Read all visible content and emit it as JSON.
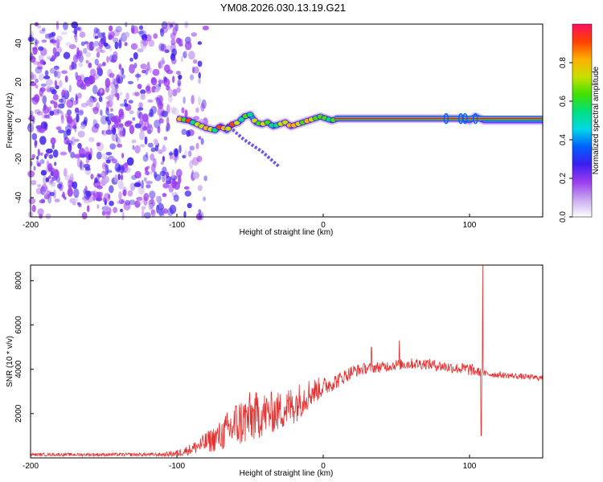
{
  "figure_title": "YM08.2026.030.13.19.G21",
  "chart_data": [
    {
      "type": "heatmap",
      "name": "spectrogram",
      "title": "YM08.2026.030.13.19.G21",
      "xlabel": "Height of straight line (km)",
      "ylabel": "Frequency (Hz)",
      "xlim": [
        -200,
        150
      ],
      "ylim": [
        -50,
        50
      ],
      "x_ticks": [
        -200,
        -100,
        0,
        100
      ],
      "y_ticks": [
        -40,
        -20,
        0,
        20,
        40
      ],
      "colorbar": {
        "label": "Normalized spectral amplitude",
        "range": [
          0,
          1
        ],
        "ticks": [
          "0.0",
          "0.2",
          "0.4",
          "0.6",
          "0.8"
        ],
        "colors": [
          "#ffffff",
          "#c8a8f0",
          "#9b3cf0",
          "#3c1ef0",
          "#0060ff",
          "#00d8e8",
          "#00e080",
          "#40e000",
          "#c8e000",
          "#ffb000",
          "#ff4000",
          "#ff1060"
        ]
      },
      "ridge": {
        "x": [
          -100,
          -92,
          -86,
          -80,
          -74,
          -70,
          -66,
          -62,
          -58,
          -54,
          -50,
          -46,
          -42,
          -38,
          -34,
          -30,
          -26,
          -22,
          -18,
          -14,
          -10,
          -6,
          -2,
          2,
          6,
          10,
          20,
          40,
          60,
          84,
          95,
          100,
          104,
          110,
          150
        ],
        "y": [
          1,
          0,
          -2,
          -4,
          -5,
          -3,
          -5,
          -2,
          -1,
          2,
          3,
          -1,
          -2,
          -1,
          -3,
          -2,
          -1,
          -3,
          -2,
          -1,
          0,
          1,
          2,
          1,
          0,
          1,
          1,
          1,
          1,
          1,
          1,
          0,
          2,
          0,
          0
        ]
      },
      "branch": {
        "x": [
          -66,
          -60,
          -54,
          -48,
          -42,
          -36,
          -30
        ],
        "y": [
          -2,
          -6,
          -10,
          -13,
          -16,
          -20,
          -24
        ]
      }
    },
    {
      "type": "line",
      "name": "snr",
      "xlabel": "Height of straight line (km)",
      "ylabel": "SNR (10 * v/v)",
      "xlim": [
        -200,
        150
      ],
      "ylim": [
        0,
        8700
      ],
      "x_ticks": [
        -200,
        -100,
        0,
        100
      ],
      "y_ticks": [
        2000,
        4000,
        6000,
        8000
      ],
      "color": "#e83030",
      "envelope": {
        "x": [
          -200,
          -150,
          -110,
          -100,
          -90,
          -80,
          -70,
          -60,
          -50,
          -40,
          -30,
          -20,
          -10,
          0,
          10,
          20,
          30,
          40,
          50,
          60,
          70,
          80,
          90,
          100,
          105,
          108,
          110,
          120,
          130,
          140,
          150
        ],
        "y": [
          150,
          150,
          150,
          200,
          400,
          700,
          1000,
          1500,
          1800,
          2000,
          2100,
          2400,
          2900,
          3200,
          3500,
          3900,
          4050,
          4100,
          4200,
          4250,
          4250,
          4150,
          4050,
          4000,
          3900,
          3850,
          3800,
          3750,
          3700,
          3650,
          3600
        ]
      },
      "noise_amp": {
        "x": [
          -200,
          -110,
          -90,
          -70,
          -60,
          -50,
          -40,
          -30,
          -20,
          -10,
          0,
          10,
          30,
          60,
          90,
          100,
          110,
          150
        ],
        "y": [
          70,
          80,
          250,
          700,
          1100,
          1200,
          1000,
          900,
          900,
          700,
          450,
          350,
          250,
          250,
          250,
          300,
          150,
          120
        ]
      },
      "spikes": [
        {
          "x": 33,
          "y": 5000
        },
        {
          "x": 52,
          "y": 5300
        },
        {
          "x": 108,
          "y": 1000
        },
        {
          "x": 109,
          "y": 8700
        }
      ]
    }
  ]
}
